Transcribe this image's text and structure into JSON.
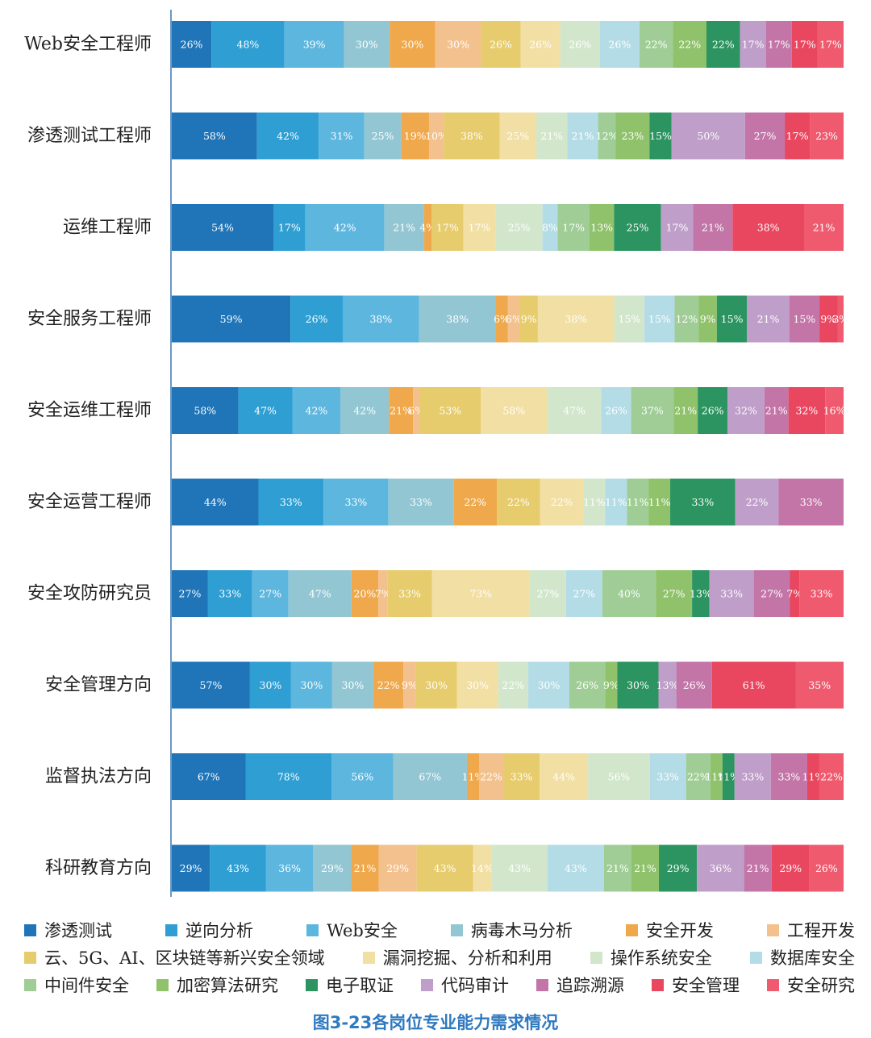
{
  "chart_data": {
    "type": "bar",
    "orientation": "horizontal",
    "stacked": true,
    "title": "图3-23各岗位专业能力需求情况",
    "categories": [
      "Web安全工程师",
      "渗透测试工程师",
      "运维工程师",
      "安全服务工程师",
      "安全运维工程师",
      "安全运营工程师",
      "安全攻防研究员",
      "安全管理方向",
      "监督执法方向",
      "科研教育方向"
    ],
    "series": [
      {
        "name": "渗透测试",
        "color": "#1f75b8",
        "values": [
          26,
          58,
          54,
          59,
          58,
          44,
          27,
          57,
          67,
          29
        ]
      },
      {
        "name": "逆向分析",
        "color": "#2f9fd3",
        "values": [
          48,
          42,
          17,
          26,
          47,
          33,
          33,
          30,
          78,
          43
        ]
      },
      {
        "name": "Web安全",
        "color": "#5db6de",
        "values": [
          39,
          31,
          42,
          38,
          42,
          33,
          27,
          30,
          56,
          36
        ]
      },
      {
        "name": "病毒木马分析",
        "color": "#92c6d3",
        "values": [
          30,
          25,
          21,
          38,
          42,
          33,
          47,
          30,
          67,
          29
        ]
      },
      {
        "name": "安全开发",
        "color": "#f0a84c",
        "values": [
          30,
          19,
          4,
          6,
          21,
          22,
          20,
          22,
          11,
          21
        ]
      },
      {
        "name": "工程开发",
        "color": "#f3c18d",
        "values": [
          30,
          10,
          0,
          6,
          6,
          0,
          7,
          9,
          22,
          29
        ]
      },
      {
        "name": "云、5G、AI、区块链等新兴安全领域",
        "color": "#e6cc6c",
        "values": [
          26,
          38,
          17,
          9,
          53,
          22,
          33,
          30,
          33,
          43
        ]
      },
      {
        "name": "漏洞挖掘、分析和利用",
        "color": "#f2dfa3",
        "values": [
          26,
          25,
          17,
          38,
          58,
          22,
          73,
          30,
          44,
          14
        ]
      },
      {
        "name": "操作系统安全",
        "color": "#d2e6cc",
        "values": [
          26,
          21,
          25,
          15,
          47,
          11,
          27,
          22,
          56,
          43
        ]
      },
      {
        "name": "数据库安全",
        "color": "#b4dce6",
        "values": [
          26,
          21,
          8,
          15,
          26,
          11,
          27,
          30,
          33,
          43
        ]
      },
      {
        "name": "中间件安全",
        "color": "#9fcd95",
        "values": [
          22,
          12,
          17,
          12,
          37,
          11,
          40,
          26,
          22,
          21
        ]
      },
      {
        "name": "加密算法研究",
        "color": "#8fc26b",
        "values": [
          22,
          23,
          13,
          9,
          21,
          11,
          27,
          9,
          11,
          21
        ]
      },
      {
        "name": "电子取证",
        "color": "#2b9460",
        "values": [
          22,
          15,
          25,
          15,
          26,
          33,
          13,
          30,
          11,
          29
        ]
      },
      {
        "name": "代码审计",
        "color": "#bf9ec9",
        "values": [
          17,
          50,
          17,
          21,
          32,
          22,
          33,
          13,
          33,
          36
        ]
      },
      {
        "name": "追踪溯源",
        "color": "#c375a8",
        "values": [
          17,
          27,
          21,
          15,
          21,
          33,
          27,
          26,
          33,
          21
        ]
      },
      {
        "name": "安全管理",
        "color": "#e8475f",
        "values": [
          17,
          17,
          38,
          9,
          32,
          0,
          7,
          61,
          11,
          29
        ]
      },
      {
        "name": "安全研究",
        "color": "#ef5a6e",
        "values": [
          17,
          23,
          21,
          3,
          16,
          0,
          33,
          35,
          22,
          26
        ]
      }
    ],
    "value_labels": [
      [
        "26%",
        "48%",
        "39%",
        "30%",
        "30%",
        "30%",
        "26%",
        "26%",
        "26%",
        "26%",
        "22%",
        "22%",
        "22%",
        "17%",
        "17%",
        "17%",
        "17%"
      ],
      [
        "58%",
        "42%",
        "31%",
        "25%",
        "19%",
        "10%",
        "38%",
        "25%",
        "21%",
        "21%",
        "12%",
        "23%",
        "15%",
        "50%",
        "27%",
        "17%",
        "23%"
      ],
      [
        "54%",
        "17%",
        "42%",
        "21%",
        "4%",
        "",
        "17%",
        "17%",
        "25%",
        "8%",
        "17%",
        "13%",
        "25%",
        "17%",
        "21%",
        "38%",
        "21%"
      ],
      [
        "59%",
        "26%",
        "38%",
        "38%",
        "6%",
        "6%",
        "9%",
        "38%",
        "15%",
        "15%",
        "12%",
        "9%",
        "15%",
        "21%",
        "15%",
        "9%",
        "3%"
      ],
      [
        "58%",
        "47%",
        "42%",
        "42%",
        "21%",
        "6%",
        "53%",
        "58%",
        "47%",
        "26%",
        "37%",
        "21%",
        "26%",
        "32%",
        "21%",
        "32%",
        "16%"
      ],
      [
        "44%",
        "33%",
        "33%",
        "33%",
        "22%",
        "",
        "22%",
        "22%",
        "11%",
        "11%",
        "11%",
        "11%",
        "33%",
        "22%",
        "33%",
        "",
        ""
      ],
      [
        "27%",
        "33%",
        "27%",
        "47%",
        "20%",
        "7%",
        "33%",
        "73%",
        "27%",
        "27%",
        "40%",
        "27%",
        "13%",
        "33%",
        "27%",
        "7%",
        "33%"
      ],
      [
        "57%",
        "30%",
        "30%",
        "30%",
        "22%",
        "9%",
        "30%",
        "30%",
        "22%",
        "30%",
        "26%",
        "9%",
        "30%",
        "13%",
        "26%",
        "61%",
        "35%"
      ],
      [
        "67%",
        "78%",
        "56%",
        "67%",
        "11%",
        "22%",
        "33%",
        "44%",
        "56%",
        "33%",
        "22%",
        "11%",
        "11%",
        "33%",
        "33%",
        "11%",
        "22%"
      ],
      [
        "29%",
        "43%",
        "36%",
        "29%",
        "21%",
        "29%",
        "43%",
        "14%",
        "43%",
        "43%",
        "21%",
        "21%",
        "29%",
        "36%",
        "21%",
        "29%",
        "26%"
      ]
    ],
    "legend_position": "bottom",
    "grid": false
  },
  "legend_rows": [
    [
      0,
      1,
      2,
      3,
      4,
      5
    ],
    [
      6,
      7,
      8,
      9
    ],
    [
      10,
      11,
      12,
      13,
      14,
      15,
      16
    ]
  ],
  "caption": "图3-23各岗位专业能力需求情况"
}
